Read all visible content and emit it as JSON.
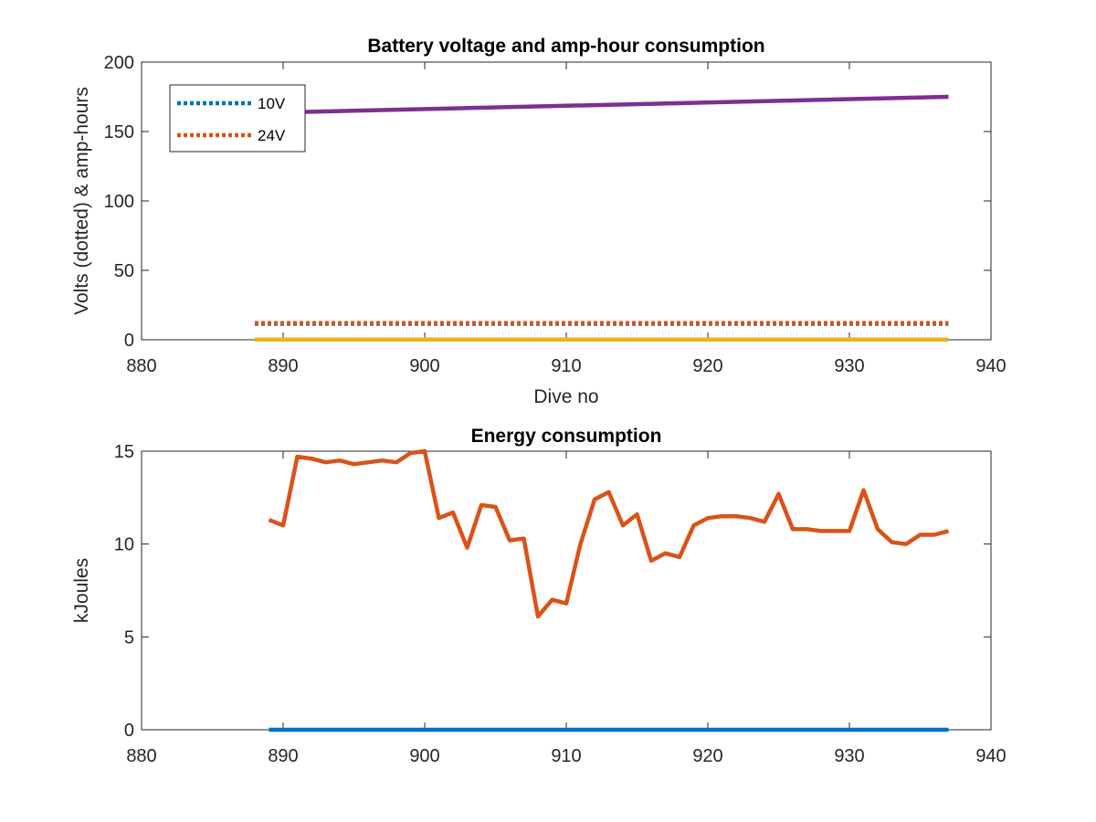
{
  "chart_data": [
    {
      "type": "line",
      "title": "Battery voltage and amp-hour consumption",
      "xlabel": "Dive no",
      "ylabel": "Volts (dotted) & amp-hours",
      "xlim": [
        880,
        940
      ],
      "ylim": [
        0,
        200
      ],
      "xticks": [
        "880",
        "890",
        "900",
        "910",
        "920",
        "930",
        "940"
      ],
      "yticks": [
        "0",
        "50",
        "100",
        "150",
        "200"
      ],
      "grid": false,
      "legend": {
        "placement": "top-left",
        "entries": [
          "10V",
          "24V"
        ]
      },
      "series": [
        {
          "name": "10V",
          "color": "#0072BD",
          "style": "dotted",
          "x": [
            888,
            937
          ],
          "values": [
            11.5,
            11.5
          ]
        },
        {
          "name": "24V",
          "color": "#D95319",
          "style": "dotted",
          "x": [
            888,
            937
          ],
          "values": [
            12,
            12
          ]
        },
        {
          "color": "#EDB120",
          "style": "solid",
          "x": [
            888,
            937
          ],
          "values": [
            0.2,
            0.2
          ]
        },
        {
          "color": "#7E2F8E",
          "style": "solid",
          "x": [
            891,
            937
          ],
          "values": [
            164,
            175
          ]
        }
      ]
    },
    {
      "type": "line",
      "title": "Energy consumption",
      "xlabel": "",
      "ylabel": "kJoules",
      "xlim": [
        880,
        940
      ],
      "ylim": [
        0,
        15
      ],
      "xticks": [
        "880",
        "890",
        "900",
        "910",
        "920",
        "930",
        "940"
      ],
      "yticks": [
        "0",
        "5",
        "10",
        "15"
      ],
      "grid": false,
      "series": [
        {
          "color": "#0072BD",
          "style": "solid",
          "x": [
            889,
            937
          ],
          "values": [
            0,
            0
          ]
        },
        {
          "color": "#D95319",
          "style": "solid",
          "x": [
            889,
            890,
            891,
            892,
            893,
            894,
            895,
            896,
            897,
            898,
            899,
            900,
            901,
            902,
            903,
            904,
            905,
            906,
            907,
            908,
            909,
            910,
            911,
            912,
            913,
            914,
            915,
            916,
            917,
            918,
            919,
            920,
            921,
            922,
            923,
            924,
            925,
            926,
            927,
            928,
            929,
            930,
            931,
            932,
            933,
            934,
            935,
            936,
            937
          ],
          "values": [
            11.3,
            11.0,
            14.7,
            14.6,
            14.4,
            14.5,
            14.3,
            14.4,
            14.5,
            14.4,
            14.9,
            15.0,
            11.4,
            11.7,
            9.8,
            12.1,
            12.0,
            10.2,
            10.3,
            6.1,
            7.0,
            6.8,
            10.0,
            12.4,
            12.8,
            11.0,
            11.6,
            9.1,
            9.5,
            9.3,
            11.0,
            11.4,
            11.5,
            11.5,
            11.4,
            11.2,
            12.7,
            10.8,
            10.8,
            10.7,
            10.7,
            10.7,
            12.9,
            10.8,
            10.1,
            10.0,
            10.5,
            10.5,
            10.7
          ]
        }
      ]
    }
  ]
}
